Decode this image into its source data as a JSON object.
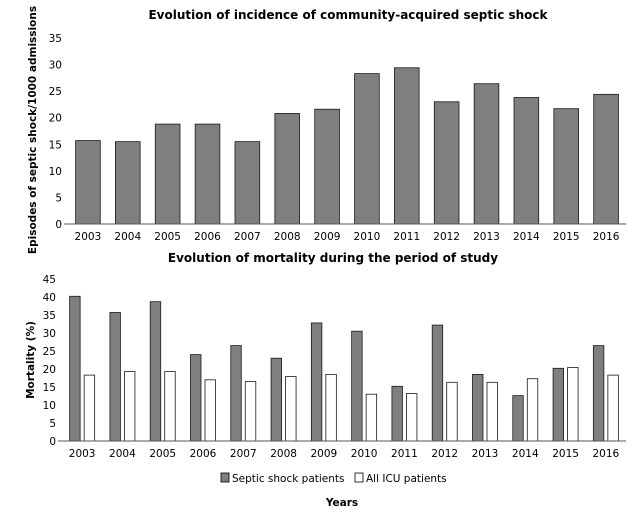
{
  "chart_data": [
    {
      "type": "bar",
      "title": "Evolution of incidence of community-acquired septic shock",
      "xlabel": "",
      "ylabel": "Episodes of septic shock/1000 admissions",
      "categories": [
        "2003",
        "2004",
        "2005",
        "2006",
        "2007",
        "2008",
        "2009",
        "2010",
        "2011",
        "2012",
        "2013",
        "2014",
        "2015",
        "2016"
      ],
      "values": [
        15.7,
        15.5,
        18.8,
        18.8,
        15.5,
        20.8,
        21.6,
        28.3,
        29.4,
        23.0,
        26.4,
        23.8,
        21.7,
        24.4
      ],
      "ylim": [
        0,
        35
      ],
      "yticks": [
        0,
        5,
        10,
        15,
        20,
        25,
        30,
        35
      ],
      "color": "#7f7f7f",
      "grid": false
    },
    {
      "type": "bar",
      "title": "Evolution of mortality during the period of study",
      "xlabel": "Years",
      "ylabel": "Mortality (%)",
      "categories": [
        "2003",
        "2004",
        "2005",
        "2006",
        "2007",
        "2008",
        "2009",
        "2010",
        "2011",
        "2012",
        "2013",
        "2014",
        "2015",
        "2016"
      ],
      "series": [
        {
          "name": "Septic shock patients",
          "color": "#7f7f7f",
          "values": [
            40.2,
            35.7,
            38.7,
            24.0,
            26.5,
            23.0,
            32.8,
            30.5,
            15.2,
            32.2,
            18.5,
            12.6,
            20.2,
            26.5
          ]
        },
        {
          "name": "All ICU patients",
          "color": "#ffffff",
          "values": [
            18.3,
            19.3,
            19.3,
            17.0,
            16.5,
            17.9,
            18.5,
            13.0,
            13.2,
            16.3,
            16.3,
            17.3,
            20.4,
            18.3
          ]
        }
      ],
      "ylim": [
        0,
        45
      ],
      "yticks": [
        0,
        5,
        10,
        15,
        20,
        25,
        30,
        35,
        40,
        45
      ],
      "legend": "bottom",
      "grid": false
    }
  ]
}
